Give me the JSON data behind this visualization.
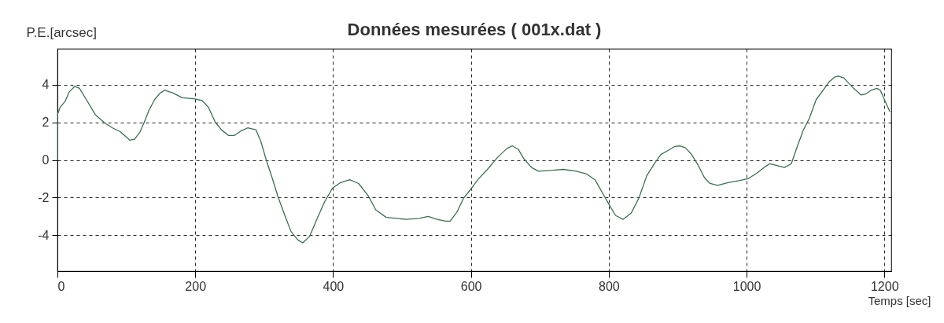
{
  "chart_data": {
    "type": "line",
    "title": "Données mesurées ( 001x.dat )",
    "xlabel": "Temps [sec]",
    "ylabel": "P.E.[arcsec]",
    "x": [
      0,
      0,
      4,
      11,
      17,
      25,
      32,
      42,
      55,
      69,
      80,
      91,
      105,
      112,
      120,
      126,
      133,
      141,
      149,
      156,
      168,
      181,
      198,
      210,
      219,
      229,
      238,
      248,
      257,
      267,
      276,
      288,
      295,
      303,
      312,
      320,
      330,
      339,
      349,
      356,
      366,
      377,
      388,
      399,
      411,
      424,
      437,
      451,
      462,
      477,
      506,
      525,
      538,
      551,
      563,
      570,
      580,
      589,
      601,
      610,
      624,
      639,
      652,
      660,
      669,
      677,
      688,
      698,
      719,
      734,
      753,
      768,
      780,
      791,
      801,
      810,
      821,
      833,
      844,
      855,
      867,
      876,
      886,
      895,
      903,
      911,
      920,
      930,
      939,
      947,
      958,
      973,
      989,
      1002,
      1015,
      1027,
      1034,
      1044,
      1055,
      1065,
      1072,
      1082,
      1091,
      1101,
      1111,
      1120,
      1128,
      1133,
      1141,
      1154,
      1166,
      1173,
      1181,
      1189,
      1194,
      1200,
      1208
    ],
    "series": [
      {
        "color": "#3a7050",
        "values": [
          0,
          2.4,
          2.8,
          3.1,
          3.6,
          3.9,
          3.8,
          3.2,
          2.4,
          1.95,
          1.7,
          1.5,
          1.05,
          1.1,
          1.5,
          2.0,
          2.65,
          3.2,
          3.55,
          3.7,
          3.55,
          3.3,
          3.25,
          3.15,
          2.8,
          2.0,
          1.6,
          1.3,
          1.3,
          1.55,
          1.7,
          1.6,
          1.0,
          0.0,
          -1.0,
          -1.95,
          -2.95,
          -3.8,
          -4.25,
          -4.4,
          -4.05,
          -3.1,
          -2.2,
          -1.5,
          -1.2,
          -1.05,
          -1.25,
          -1.9,
          -2.65,
          -3.05,
          -3.15,
          -3.1,
          -3.0,
          -3.15,
          -3.25,
          -3.25,
          -2.75,
          -2.05,
          -1.5,
          -1.05,
          -0.5,
          0.15,
          0.6,
          0.75,
          0.55,
          0.05,
          -0.4,
          -0.6,
          -0.55,
          -0.5,
          -0.6,
          -0.75,
          -1.05,
          -1.75,
          -2.4,
          -2.95,
          -3.15,
          -2.8,
          -2.0,
          -0.85,
          -0.15,
          0.3,
          0.5,
          0.7,
          0.75,
          0.65,
          0.3,
          -0.3,
          -0.95,
          -1.25,
          -1.35,
          -1.2,
          -1.1,
          -1.0,
          -0.7,
          -0.35,
          -0.2,
          -0.3,
          -0.4,
          -0.2,
          0.55,
          1.55,
          2.2,
          3.2,
          3.7,
          4.15,
          4.4,
          4.45,
          4.35,
          3.85,
          3.45,
          3.5,
          3.7,
          3.8,
          3.7,
          3.2,
          2.55
        ]
      }
    ],
    "xlim": [
      0,
      1210
    ],
    "ylim": [
      -5.9,
      5.9
    ],
    "xticks": [
      0,
      200,
      400,
      600,
      800,
      1000,
      1200
    ],
    "yticks": [
      -4,
      -2,
      0,
      2,
      4
    ],
    "grid": true,
    "line_style": "solid"
  }
}
